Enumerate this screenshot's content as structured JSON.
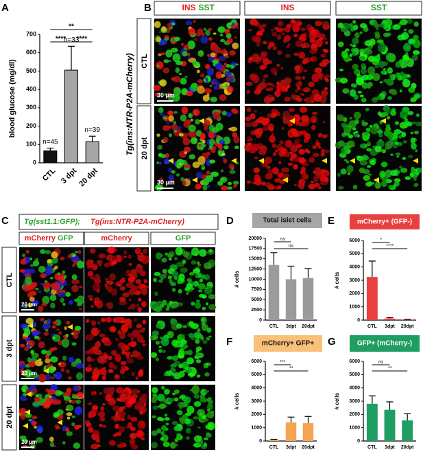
{
  "panel_letters": [
    "A",
    "B",
    "C",
    "D",
    "E",
    "F",
    "G"
  ],
  "panel_b": {
    "transgene": "Tg(ins:NTR-P2A-mCherry)",
    "merge_header": [
      "INS",
      "SST"
    ],
    "columns": [
      "INS",
      "SST"
    ],
    "rows": [
      "CTL",
      "20 dpt"
    ],
    "scale_bars": [
      "30 µm",
      "30 µm"
    ]
  },
  "panel_c": {
    "transgenes": [
      "Tg(sst1.1:GFP);",
      "Tg(ins:NTR-P2A-mCherry)"
    ],
    "merge_header": [
      "mCherry",
      "GFP"
    ],
    "columns": [
      "mCherry",
      "GFP"
    ],
    "rows": [
      "CTL",
      "3 dpt",
      "20 dpt"
    ],
    "scale_bars": [
      "20 µm",
      "20 µm",
      "20 µm"
    ]
  },
  "chart_data": [
    {
      "type": "bar",
      "y_label": "blood glucose (mg/dl)",
      "categories": [
        "CTL",
        "3 dpt",
        "20 dpt"
      ],
      "values": [
        65,
        505,
        115
      ],
      "errors": [
        15,
        130,
        30
      ],
      "colors": [
        "#111111",
        "#a6a6a6",
        "#a6a6a6"
      ],
      "annotations": [
        "n=45",
        "n=33",
        "n=39"
      ],
      "significance": [
        "**",
        "****",
        "****"
      ],
      "ylim": [
        0,
        700
      ],
      "yticks": [
        0,
        100,
        200,
        300,
        400,
        500,
        600,
        700
      ]
    },
    {
      "type": "bar",
      "title": "Total islet cells",
      "title_background": "#a6a6a6",
      "title_color": "#111111",
      "y_label": "# cells",
      "categories": [
        "CTL",
        "3dpt",
        "20dpt"
      ],
      "values": [
        13500,
        10000,
        10300
      ],
      "errors": [
        3000,
        3200,
        2300
      ],
      "colors": [
        "#9b9b9b",
        "#9b9b9b",
        "#9b9b9b"
      ],
      "significance": [
        "ns",
        "ns"
      ],
      "ylim": [
        0,
        20000
      ],
      "yticks": [
        0,
        2500,
        5000,
        7500,
        10000,
        12500,
        15000,
        17500,
        20000
      ]
    },
    {
      "type": "bar",
      "title": "mCherry+ (GFP-)",
      "title_background": "#e8403f",
      "title_color": "#ffffff",
      "y_label": "# cells",
      "categories": [
        "CTL",
        "3dpt",
        "20dpt"
      ],
      "values": [
        3250,
        120,
        40
      ],
      "errors": [
        1200,
        60,
        20
      ],
      "colors": [
        "#e8403f",
        "#e8403f",
        "#e8403f"
      ],
      "significance": [
        "*",
        "****"
      ],
      "ylim": [
        0,
        6000
      ],
      "yticks": [
        0,
        1000,
        2000,
        3000,
        4000,
        5000,
        6000
      ]
    },
    {
      "type": "bar",
      "title": "mCherry+ GFP+",
      "title_background": "#f9c07a",
      "title_color": "#111111",
      "y_label": "# cells",
      "categories": [
        "CTL",
        "3dpt",
        "20dpt"
      ],
      "values": [
        100,
        1400,
        1350
      ],
      "errors": [
        30,
        400,
        500
      ],
      "colors": [
        "#f5a450",
        "#f5a450",
        "#f5a450"
      ],
      "significance": [
        "***",
        "**"
      ],
      "ylim": [
        0,
        6000
      ],
      "yticks": [
        0,
        1000,
        2000,
        3000,
        4000,
        5000,
        6000
      ]
    },
    {
      "type": "bar",
      "title": "GFP+ (mCherry-)",
      "title_background": "#1e9e62",
      "title_color": "#ffffff",
      "y_label": "# cells",
      "categories": [
        "CTL",
        "3dpt",
        "20dpt"
      ],
      "values": [
        2800,
        2350,
        1550
      ],
      "errors": [
        600,
        600,
        500
      ],
      "colors": [
        "#1e9e62",
        "#1e9e62",
        "#1e9e62"
      ],
      "significance": [
        "ns",
        "**"
      ],
      "ylim": [
        0,
        6000
      ],
      "yticks": [
        0,
        1000,
        2000,
        3000,
        4000,
        5000,
        6000
      ]
    }
  ]
}
